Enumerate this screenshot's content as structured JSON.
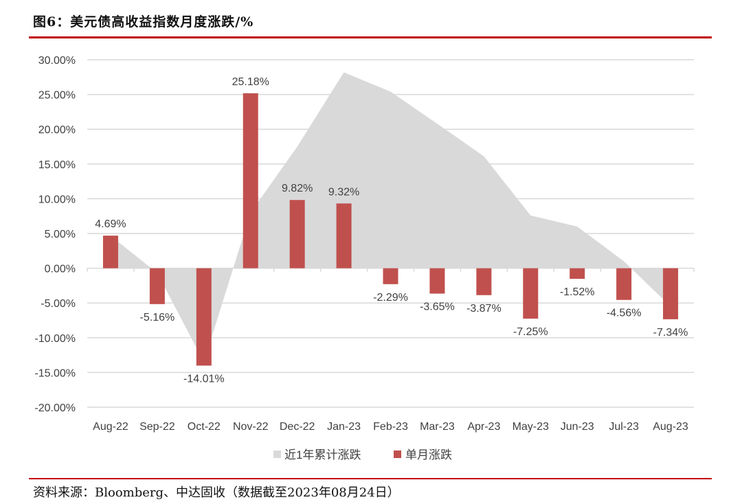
{
  "title": "图6：美元债高收益指数月度涨跌/%",
  "source": "资料来源：Bloomberg、中达固收（数据截至2023年08月24日）",
  "chart_data": {
    "type": "bar",
    "title": "图6：美元债高收益指数月度涨跌/%",
    "categories": [
      "Aug-22",
      "Sep-22",
      "Oct-22",
      "Nov-22",
      "Dec-22",
      "Jan-23",
      "Feb-23",
      "Mar-23",
      "Apr-23",
      "May-23",
      "Jun-23",
      "Jul-23",
      "Aug-23"
    ],
    "ylim": [
      -20,
      30
    ],
    "yticks": [
      30,
      25,
      20,
      15,
      10,
      5,
      0,
      -5,
      -10,
      -15,
      -20
    ],
    "ytick_labels": [
      "30.00%",
      "25.00%",
      "20.00%",
      "15.00%",
      "10.00%",
      "5.00%",
      "0.00%",
      "-5.00%",
      "-10.00%",
      "-15.00%",
      "-20.00%"
    ],
    "grid": true,
    "legend_position": "bottom",
    "series": [
      {
        "name": "近1年累计涨跌",
        "type": "area",
        "color": "#d9d9d9",
        "values": [
          4.69,
          -0.7,
          -13.5,
          8.0,
          17.5,
          28.2,
          25.4,
          20.8,
          16.1,
          7.6,
          6.0,
          1.0,
          -5.5
        ]
      },
      {
        "name": "单月涨跌",
        "type": "bar",
        "color": "#c0504d",
        "values": [
          4.69,
          -5.16,
          -14.01,
          25.18,
          9.82,
          9.32,
          -2.29,
          -3.65,
          -3.87,
          -7.25,
          -1.52,
          -4.56,
          -7.34
        ],
        "labels": [
          "4.69%",
          "-5.16%",
          "-14.01%",
          "25.18%",
          "9.82%",
          "9.32%",
          "-2.29%",
          "-3.65%",
          "-3.87%",
          "-7.25%",
          "-1.52%",
          "-4.56%",
          "-7.34%"
        ]
      }
    ]
  }
}
